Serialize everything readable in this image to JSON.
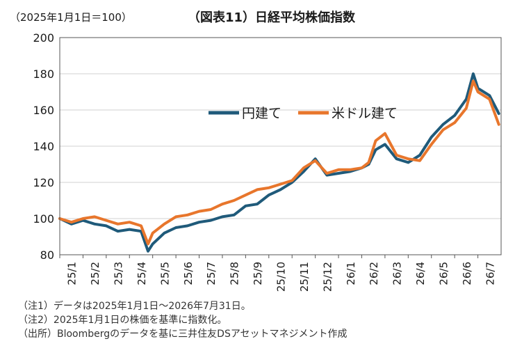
{
  "header": {
    "note": "（2025年1月1日＝100）",
    "title": "（図表11）日経平均株価指数"
  },
  "footnotes": [
    "（注1）データは2025年1月1日～2026年7月31日。",
    "（注2）2025年1月1日の株価を基準に指数化。",
    "（出所）Bloombergのデータを基に三井住友DSアセットマネジメント作成"
  ],
  "chart_data": {
    "type": "line",
    "title": "（図表11）日経平均株価指数",
    "xlabel": "",
    "ylabel": "",
    "ylim": [
      80,
      200
    ],
    "yticks": [
      80,
      100,
      120,
      140,
      160,
      180,
      200
    ],
    "categories": [
      "25/1",
      "25/2",
      "25/3",
      "25/4",
      "25/5",
      "25/6",
      "25/7",
      "25/8",
      "25/9",
      "25/10",
      "25/11",
      "25/12",
      "26/1",
      "26/2",
      "26/3",
      "26/4",
      "26/5",
      "26/6",
      "26/7"
    ],
    "grid": true,
    "legend": "top-center",
    "x": [
      0,
      0.5,
      1,
      1.5,
      2,
      2.5,
      3,
      3.5,
      3.8,
      4,
      4.5,
      5,
      5.5,
      6,
      6.5,
      7,
      7.5,
      8,
      8.5,
      9,
      9.5,
      10,
      10.5,
      11,
      11.5,
      12,
      12.5,
      13,
      13.3,
      13.6,
      14,
      14.5,
      15,
      15.5,
      16,
      16.5,
      17,
      17.5,
      17.8,
      18,
      18.5,
      18.9
    ],
    "series": [
      {
        "name": "円建て",
        "color": "#1f5a7a",
        "values": [
          100,
          97,
          99,
          97,
          96,
          93,
          94,
          93,
          82,
          86,
          92,
          95,
          96,
          98,
          99,
          101,
          102,
          107,
          108,
          113,
          116,
          120,
          126,
          133,
          124,
          125,
          126,
          128,
          130,
          138,
          141,
          133,
          131,
          135,
          145,
          152,
          157,
          166,
          180,
          172,
          168,
          158
        ]
      },
      {
        "name": "米ドル建て",
        "color": "#e8762c",
        "values": [
          100,
          98,
          100,
          101,
          99,
          97,
          98,
          96,
          86,
          92,
          97,
          101,
          102,
          104,
          105,
          108,
          110,
          113,
          116,
          117,
          119,
          121,
          128,
          132,
          125,
          127,
          127,
          128,
          131,
          143,
          147,
          135,
          133,
          132,
          141,
          149,
          153,
          161,
          176,
          170,
          166,
          152
        ]
      }
    ]
  }
}
